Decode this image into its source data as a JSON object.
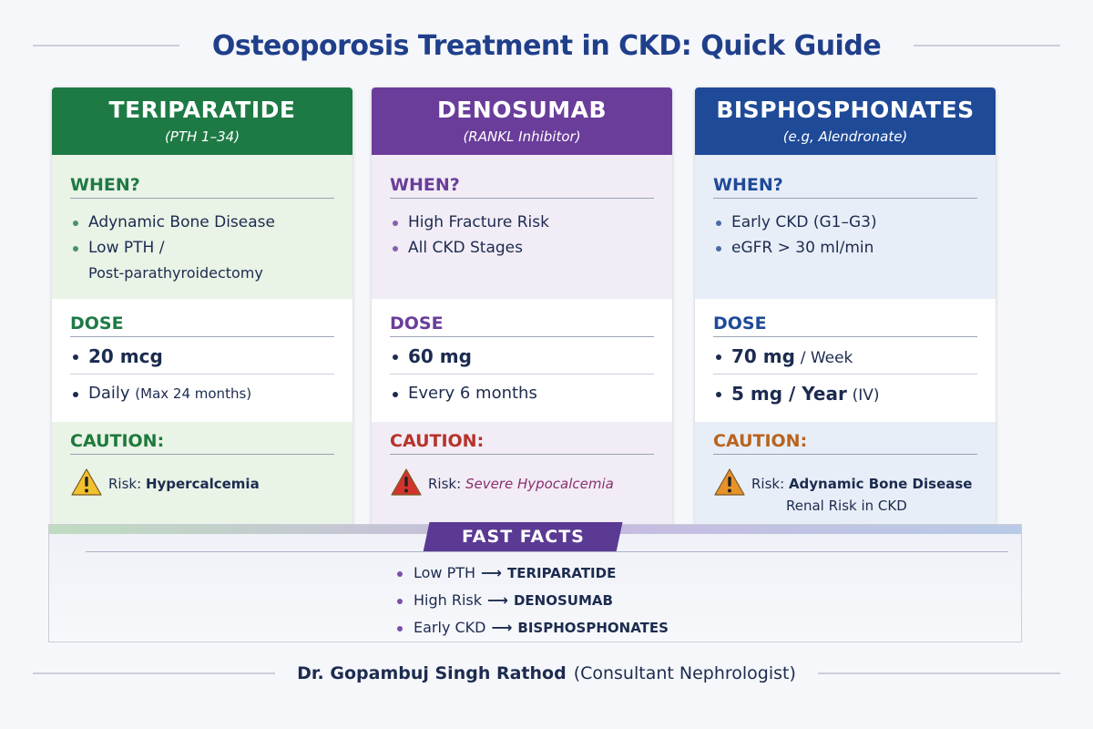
{
  "title": "Osteoporosis Treatment in CKD: Quick Guide",
  "cards": [
    {
      "name": "TERIPARATIDE",
      "subtitle": "(PTH 1–34)",
      "color": "#1e7a45",
      "when_label": "WHEN?",
      "when": [
        [
          "Adynamic Bone Disease"
        ],
        [
          "Low PTH /",
          "Post-parathyroidectomy"
        ]
      ],
      "dose_label": "DOSE",
      "dose": [
        {
          "main": "20 mcg",
          "bold": true
        },
        {
          "main": "Daily",
          "extra": "(Max 24 months)",
          "bold": false
        }
      ],
      "caution_label": "CAUTION:",
      "caution": {
        "prefix": "Risk:",
        "risk": "Hypercalcemia"
      },
      "icon": "#f2c12e"
    },
    {
      "name": "DENOSUMAB",
      "subtitle": "(RANKL Inhibitor)",
      "color": "#6a3d9a",
      "when_label": "WHEN?",
      "when": [
        [
          "High Fracture Risk"
        ],
        [
          "All CKD Stages"
        ]
      ],
      "dose_label": "DOSE",
      "dose": [
        {
          "main": "60 mg",
          "bold": true
        },
        {
          "main": "Every 6 months",
          "bold": false
        }
      ],
      "caution_label": "CAUTION:",
      "caution": {
        "prefix": "Risk:",
        "risk": "Severe Hypocalcemia"
      },
      "icon": "#d2332d"
    },
    {
      "name": "BISPHOSPHONATES",
      "subtitle": "(e.g, Alendronate)",
      "color": "#1f4a98",
      "when_label": "WHEN?",
      "when": [
        [
          "Early CKD (G1–G3)"
        ],
        [
          "eGFR > 30 ml/min"
        ]
      ],
      "dose_label": "DOSE",
      "dose": [
        {
          "main": "70 mg",
          "extra": "/ Week",
          "bold": true
        },
        {
          "main": "5 mg / Year",
          "extra": "(IV)",
          "bold": true
        }
      ],
      "caution_label": "CAUTION:",
      "caution": {
        "prefix": "Risk:",
        "risk": "Adynamic Bone Disease",
        "risk2": "Renal Risk in CKD"
      },
      "icon": "#e8922a"
    }
  ],
  "fast_facts": {
    "title": "FAST FACTS",
    "items": [
      {
        "from": "Low PTH",
        "to": "TERIPARATIDE"
      },
      {
        "from": "High Risk",
        "to": "DENOSUMAB"
      },
      {
        "from": "Early CKD",
        "to": "BISPHOSPHONATES"
      }
    ]
  },
  "footer": {
    "name": "Dr. Gopambuj Singh Rathod",
    "role": "(Consultant Nephrologist)"
  }
}
